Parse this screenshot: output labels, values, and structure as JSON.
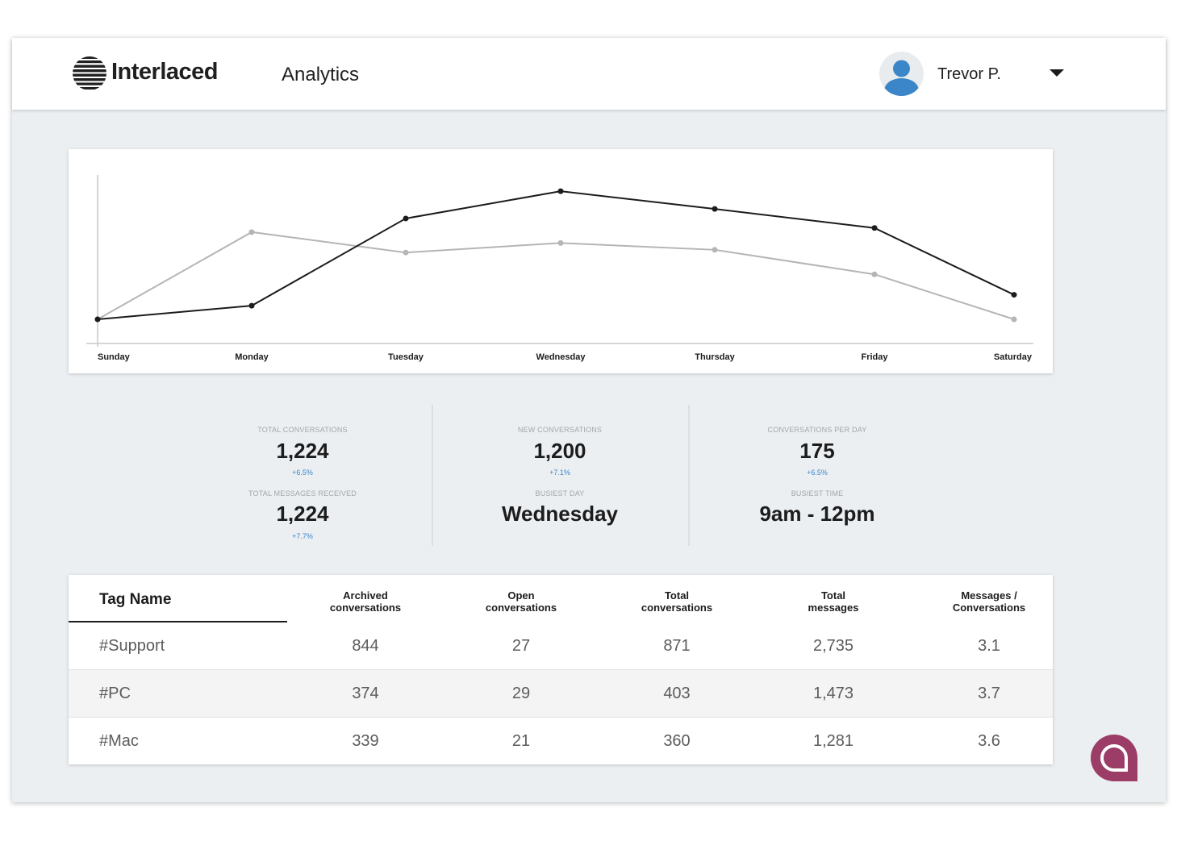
{
  "header": {
    "brand": "Interlaced",
    "section": "Analytics",
    "user_name": "Trevor P."
  },
  "icons": {
    "logo": "striped-globe-logo",
    "avatar": "user-avatar-icon",
    "dropdown": "caret-down-icon",
    "chat": "chat-bubble-icon"
  },
  "colors": {
    "accent_blue": "#3a86c8",
    "chat_brand": "#9c3d67",
    "series_primary": "#1c1c1c",
    "series_secondary": "#b5b5b5"
  },
  "chart_data": {
    "type": "line",
    "categories": [
      "Sunday",
      "Monday",
      "Tuesday",
      "Wednesday",
      "Thursday",
      "Friday",
      "Saturday"
    ],
    "series": [
      {
        "values": [
          0,
          10,
          74,
          94,
          81,
          67,
          18
        ]
      },
      {
        "values": [
          0,
          64,
          49,
          56,
          51,
          33,
          0
        ]
      }
    ],
    "ylim": [
      0,
      100
    ],
    "grid": false,
    "legend": "none"
  },
  "stats": {
    "total_conversations": {
      "label": "TOTAL CONVERSATIONS",
      "value": "1,224",
      "delta": "+6.5%"
    },
    "total_messages_received": {
      "label": "TOTAL MESSAGES RECEIVED",
      "value": "1,224",
      "delta": "+7.7%"
    },
    "new_conversations": {
      "label": "NEW CONVERSATIONS",
      "value": "1,200",
      "delta": "+7.1%"
    },
    "busiest_day": {
      "label": "BUSIEST DAY",
      "value": "Wednesday"
    },
    "conversations_per_day": {
      "label": "CONVERSATIONS PER DAY",
      "value": "175",
      "delta": "+6.5%"
    },
    "busiest_time": {
      "label": "BUSIEST TIME",
      "value": "9am - 12pm"
    }
  },
  "table": {
    "headers": [
      "Tag Name",
      "Archived\nconversations",
      "Open\nconversations",
      "Total\nconversations",
      "Total\nmessages",
      "Messages /\nConversations"
    ],
    "rows": [
      [
        "#Support",
        "844",
        "27",
        "871",
        "2,735",
        "3.1"
      ],
      [
        "#PC",
        "374",
        "29",
        "403",
        "1,473",
        "3.7"
      ],
      [
        "#Mac",
        "339",
        "21",
        "360",
        "1,281",
        "3.6"
      ]
    ]
  }
}
